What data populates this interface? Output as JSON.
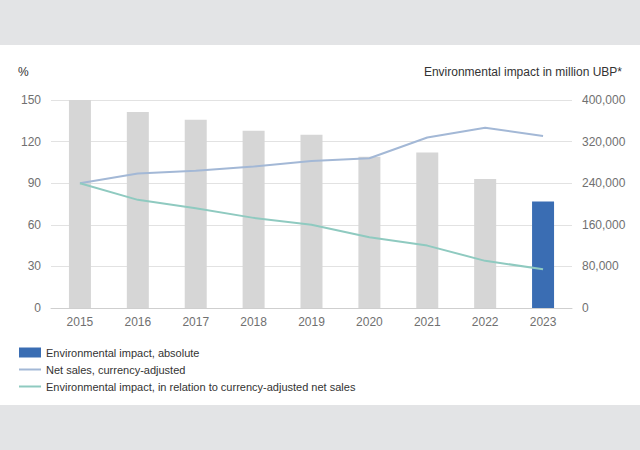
{
  "chart_data": {
    "type": "bar",
    "categories": [
      "2015",
      "2016",
      "2017",
      "2018",
      "2019",
      "2020",
      "2021",
      "2022",
      "2023"
    ],
    "series": [
      {
        "name": "Environmental impact, absolute",
        "type": "bar",
        "axis": "y2",
        "color": "#3a6db3",
        "colors": [
          "#d6d6d6",
          "#d6d6d6",
          "#d6d6d6",
          "#d6d6d6",
          "#d6d6d6",
          "#d6d6d6",
          "#d6d6d6",
          "#d6d6d6",
          "#3a6db3"
        ],
        "values": [
          400000,
          377000,
          362000,
          341000,
          333000,
          291000,
          299000,
          248000,
          205000
        ]
      },
      {
        "name": "Net sales, currency-adjusted",
        "type": "line",
        "color": "#a3b8d6",
        "values": [
          90,
          97,
          99,
          102,
          106,
          108,
          123,
          130,
          124
        ]
      },
      {
        "name": "Environmental impact, in relation to currency-adjusted net sales",
        "type": "line",
        "color": "#8fcac0",
        "values": [
          90,
          78,
          72,
          65,
          60,
          51,
          45,
          34,
          28
        ]
      }
    ],
    "y_label": "%",
    "y2_label": "Environmental impact in million UBP*",
    "ylim": [
      0,
      150
    ],
    "yticks": [
      0,
      30,
      60,
      90,
      120,
      150
    ],
    "y2lim": [
      0,
      400000
    ],
    "y2ticks": [
      0,
      {
        "value": 80000,
        "label": "80,000"
      },
      {
        "value": 160000,
        "label": "160,000"
      },
      {
        "value": 240000,
        "label": "240,000"
      },
      {
        "value": 320000,
        "label": "320,000"
      },
      {
        "value": 400000,
        "label": "400,000"
      }
    ],
    "grid": true,
    "legend": "bottom left"
  }
}
